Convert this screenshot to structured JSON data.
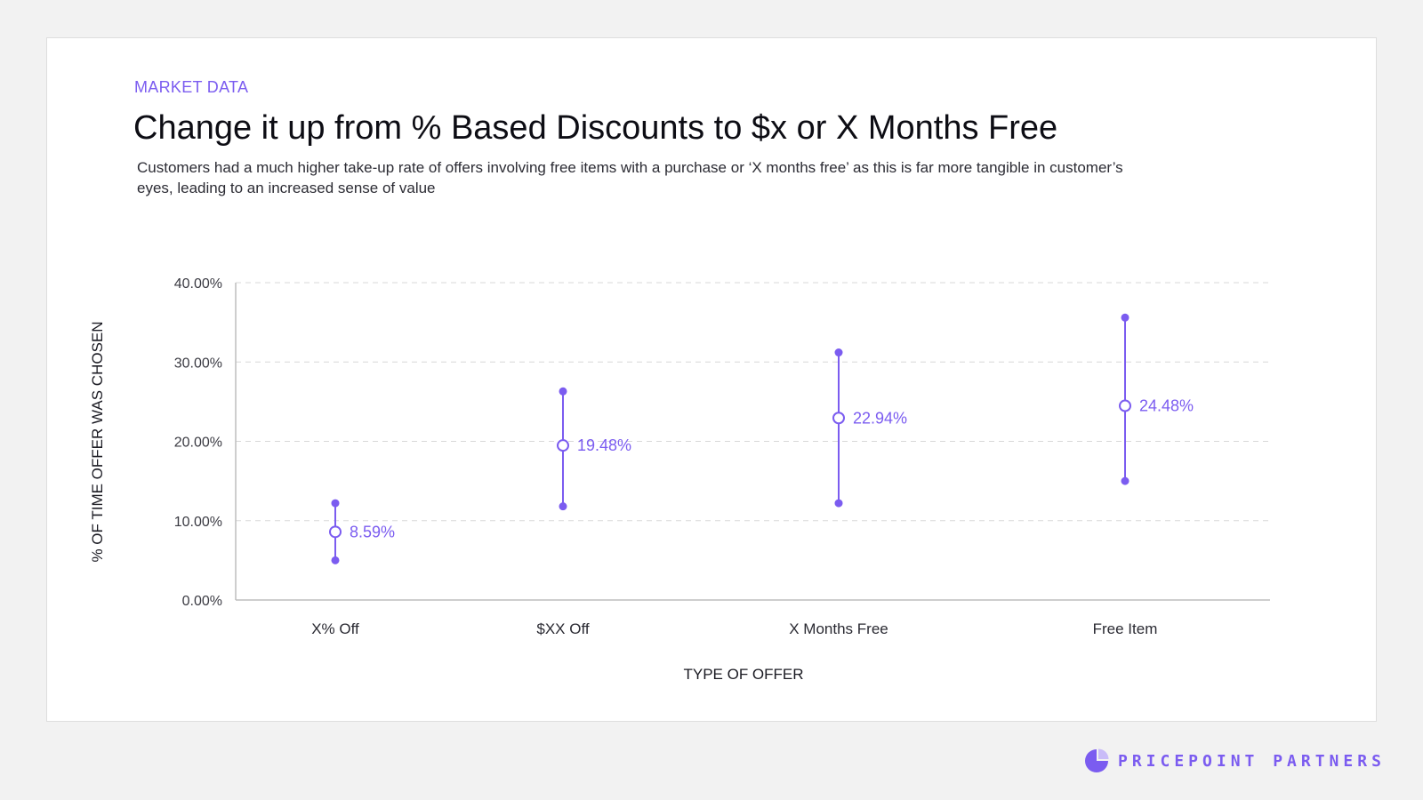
{
  "eyebrow": "MARKET DATA",
  "title": "Change it up from % Based Discounts to $x or X Months Free",
  "subtitle": "Customers had a much higher take-up rate of offers involving free items with a purchase or ‘X months free’ as this is far more tangible in customer’s eyes, leading to an increased sense of value",
  "brand": {
    "name": "PRICEPOINT PARTNERS",
    "logo_icon": "pie-chart-logo-icon"
  },
  "colors": {
    "accent": "#7b5cf0",
    "background": "#f2f2f2",
    "card": "#ffffff",
    "axis": "#bdbdbd",
    "grid": "#d8d8d8"
  },
  "chart_data": {
    "type": "scatter",
    "subtype": "range-dot-plot",
    "xlabel": "TYPE OF OFFER",
    "ylabel": "% OF TIME OFFER WAS CHOSEN",
    "ylim": [
      0,
      40
    ],
    "y_ticks": [
      0,
      10,
      20,
      30,
      40
    ],
    "y_tick_labels": [
      "0.00%",
      "10.00%",
      "20.00%",
      "30.00%",
      "40.00%"
    ],
    "grid": true,
    "grid_style": "dashed-horizontal",
    "categories": [
      "X% Off",
      "$XX Off",
      "X Months Free",
      "Free Item"
    ],
    "series": [
      {
        "values": [
          8.59,
          19.48,
          22.94,
          24.48
        ],
        "labels": [
          "8.59%",
          "19.48%",
          "22.94%",
          "24.48%"
        ],
        "low": [
          5.0,
          11.8,
          12.2,
          15.0
        ],
        "high": [
          12.2,
          26.3,
          31.2,
          35.6
        ]
      }
    ]
  }
}
